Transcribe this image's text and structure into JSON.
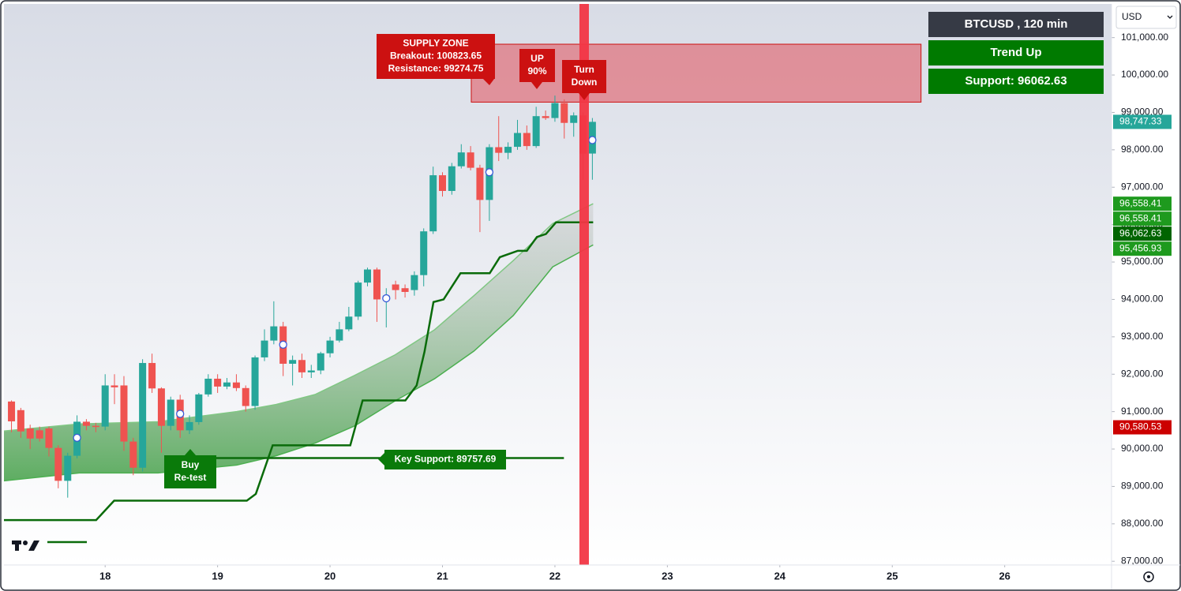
{
  "header": {
    "currency": "USD"
  },
  "panel": [
    "BTCUSD , 120 min",
    "Trend Up",
    "Support: 96062.63"
  ],
  "chart_data": {
    "type": "candlestick",
    "x": [
      17.167,
      17.25,
      17.333,
      17.417,
      17.5,
      17.583,
      17.667,
      17.75,
      17.833,
      17.917,
      18,
      18.083,
      18.167,
      18.25,
      18.333,
      18.417,
      18.5,
      18.583,
      18.667,
      18.75,
      18.833,
      18.917,
      19,
      19.083,
      19.167,
      19.25,
      19.333,
      19.417,
      19.5,
      19.583,
      19.667,
      19.75,
      19.833,
      19.917,
      20,
      20.083,
      20.167,
      20.25,
      20.333,
      20.417,
      20.5,
      20.583,
      20.667,
      20.75,
      20.833,
      20.917,
      21,
      21.083,
      21.167,
      21.25,
      21.333,
      21.417,
      21.5,
      21.583,
      21.667,
      21.75,
      21.833,
      21.917,
      22,
      22.083,
      22.167,
      22.25,
      22.333
    ],
    "open": [
      91270,
      91040,
      90550,
      90500,
      90550,
      90030,
      89150,
      89820,
      90730,
      90620,
      90600,
      91700,
      91700,
      90200,
      89500,
      92300,
      91620,
      90620,
      91320,
      90500,
      90720,
      91460,
      91880,
      91670,
      91780,
      91630,
      91150,
      92450,
      92900,
      93280,
      92280,
      92380,
      92050,
      92100,
      92560,
      92900,
      93200,
      93540,
      94450,
      94800,
      94000,
      94400,
      94300,
      94250,
      94650,
      95820,
      97320,
      96900,
      97560,
      97930,
      97520,
      96660,
      98070,
      97920,
      98080,
      98450,
      98100,
      98900,
      98850,
      99250,
      98720,
      98920,
      97900
    ],
    "high": [
      91300,
      91100,
      90650,
      90600,
      90600,
      90100,
      89900,
      90900,
      90800,
      90700,
      92000,
      92000,
      91950,
      90300,
      92400,
      92550,
      91650,
      91400,
      91450,
      90900,
      91500,
      92000,
      92000,
      91900,
      92000,
      91700,
      92500,
      93200,
      93950,
      93400,
      92500,
      92550,
      92250,
      92600,
      93000,
      93400,
      93800,
      94500,
      94850,
      94850,
      94300,
      94500,
      94400,
      94750,
      95900,
      97550,
      97400,
      97650,
      98150,
      98100,
      97600,
      98150,
      98900,
      98200,
      98800,
      98650,
      99150,
      99050,
      99450,
      99350,
      99000,
      99000,
      98850
    ],
    "low": [
      90450,
      90300,
      90000,
      90200,
      89800,
      88950,
      88700,
      89750,
      90500,
      90450,
      90500,
      91200,
      89950,
      89300,
      89400,
      91500,
      89900,
      90500,
      90300,
      90400,
      90650,
      91400,
      91500,
      91600,
      91550,
      91000,
      91050,
      92350,
      92800,
      91950,
      91700,
      91900,
      91900,
      92000,
      92450,
      92850,
      93150,
      93450,
      94350,
      93400,
      93250,
      94000,
      94050,
      94100,
      94350,
      95750,
      96750,
      96800,
      97500,
      97450,
      95800,
      96100,
      97700,
      97750,
      98000,
      98000,
      98050,
      98800,
      98750,
      98300,
      98350,
      97200,
      97200
    ],
    "close": [
      90740,
      90470,
      90280,
      90280,
      90030,
      89150,
      89820,
      90730,
      90620,
      90600,
      91700,
      91650,
      90200,
      89500,
      92300,
      91620,
      90620,
      91320,
      90500,
      90720,
      91460,
      91880,
      91670,
      91780,
      91630,
      91150,
      92450,
      92900,
      93280,
      92280,
      92380,
      92050,
      92100,
      92560,
      92900,
      93200,
      93540,
      94450,
      94800,
      94000,
      94100,
      94250,
      94200,
      94650,
      95820,
      97320,
      96900,
      97560,
      97930,
      97520,
      96660,
      98070,
      97920,
      98080,
      98450,
      98100,
      98900,
      98850,
      99250,
      98720,
      98920,
      97900,
      98747.33
    ],
    "up_color": "#26a69a",
    "down_color": "#ef5350",
    "xlim": [
      17.1,
      26.95
    ],
    "xticks": [
      18,
      19,
      20,
      21,
      22,
      23,
      24,
      25,
      26
    ],
    "ylim": [
      86900,
      101900
    ],
    "yticks": [
      {
        "value": 87000,
        "label": "87,000.00"
      },
      {
        "value": 88000,
        "label": "88,000.00"
      },
      {
        "value": 89000,
        "label": "89,000.00"
      },
      {
        "value": 90000,
        "label": "90,000.00"
      },
      {
        "value": 91000,
        "label": "91,000.00"
      },
      {
        "value": 92000,
        "label": "92,000.00"
      },
      {
        "value": 93000,
        "label": "93,000.00"
      },
      {
        "value": 94000,
        "label": "94,000.00"
      },
      {
        "value": 95000,
        "label": "95,000.00"
      },
      {
        "value": 96000,
        "label": "96,000.00"
      },
      {
        "value": 97000,
        "label": "97,000.00"
      },
      {
        "value": 98000,
        "label": "98,000.00"
      },
      {
        "value": 99000,
        "label": "99,000.00"
      },
      {
        "value": 100000,
        "label": "100,000.00"
      },
      {
        "value": 101000,
        "label": "101,000.00"
      }
    ],
    "ribbon": {
      "x": [
        17.1,
        17.77,
        18.47,
        19.17,
        19.52,
        19.87,
        20.22,
        20.58,
        20.93,
        21.28,
        21.63,
        21.98,
        22.34
      ],
      "upper": [
        90480,
        90670,
        90730,
        91000,
        91190,
        91460,
        91970,
        92520,
        93190,
        94100,
        95040,
        96030,
        96558.41
      ],
      "lower": [
        89150,
        89360,
        89360,
        89570,
        89820,
        90160,
        90620,
        91290,
        91880,
        92620,
        93570,
        94870,
        95456.93
      ]
    },
    "trail": {
      "x": [
        17.1,
        17.92,
        18.08,
        19.26,
        19.34,
        19.49,
        20.18,
        20.29,
        20.67,
        20.77,
        20.84,
        20.92,
        21.01,
        21.16,
        21.42,
        21.51,
        21.67,
        21.75,
        21.84,
        21.92,
        22.01,
        22.34
      ],
      "values": [
        88100,
        88100,
        88620,
        88620,
        88800,
        90100,
        90100,
        91300,
        91300,
        91700,
        92600,
        93930,
        94000,
        94700,
        94700,
        95130,
        95300,
        95300,
        95670,
        95750,
        96062.63,
        96062.63
      ],
      "color": "#0a6b0a"
    },
    "markers": {
      "x": [
        17.75,
        18.667,
        19.583,
        20.5,
        21.417,
        22.333
      ],
      "values": [
        90300,
        90940,
        92790,
        94030,
        97400,
        98260
      ]
    },
    "price_tags": [
      {
        "value": 98747.33,
        "label": "98,747.33",
        "color": "#26a69a"
      },
      {
        "value": 96558.41,
        "label": "96,558.41",
        "color": "#1e9a1e"
      },
      {
        "value": 96558.41,
        "label": "96,558.41",
        "color": "#1e9a1e"
      },
      {
        "value": 96062.63,
        "label": "96,062.63",
        "color": "#006400"
      },
      {
        "value": 95456.93,
        "label": "95,456.93",
        "color": "#1e9a1e"
      },
      {
        "value": 90580.53,
        "label": "90,580.53",
        "color": "#cc0000"
      }
    ],
    "annotations": {
      "supply_zone": {
        "lines": [
          "SUPPLY ZONE",
          "Breakout: 100823.65",
          "Resistance: 99274.75"
        ],
        "top": 100823.65,
        "bottom": 99274.75,
        "x": [
          21.256,
          25.256
        ]
      },
      "up_signal": {
        "lines": [
          "UP",
          "90%"
        ]
      },
      "turn_down": {
        "lines": [
          "Turn",
          "Down"
        ]
      },
      "buy_retest": {
        "lines": [
          "Buy",
          "Re-test"
        ]
      },
      "key_support": {
        "label": "Key Support: 89757.69",
        "value": 89757.69,
        "x": [
          18.58,
          22.08
        ]
      },
      "vertical_line": {
        "x": 22.26,
        "color": "#f23645"
      }
    }
  }
}
